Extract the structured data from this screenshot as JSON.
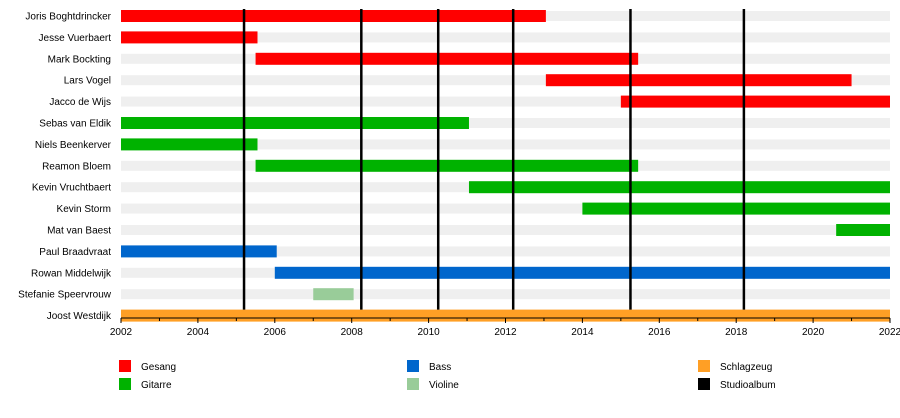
{
  "chart_data": {
    "type": "timeline",
    "x_range": [
      2002,
      2022
    ],
    "x_ticks": [
      "2002",
      "2004",
      "2006",
      "2008",
      "2010",
      "2012",
      "2014",
      "2016",
      "2018",
      "2020",
      "2022"
    ],
    "colors": {
      "Gesang": "#ff0000",
      "Gitarre": "#00b200",
      "Bass": "#0066cc",
      "Violine": "#99cc99",
      "Schlagzeug": "#ff9f25",
      "Studioalbum": "#000000"
    },
    "members": [
      {
        "name": "Joris Boghtdrincker",
        "bars": [
          {
            "role": "Gesang",
            "start": 2002.0,
            "end": 2013.05
          }
        ]
      },
      {
        "name": "Jesse Vuerbaert",
        "bars": [
          {
            "role": "Gesang",
            "start": 2002.0,
            "end": 2005.55
          }
        ]
      },
      {
        "name": "Mark Bockting",
        "bars": [
          {
            "role": "Gesang",
            "start": 2005.5,
            "end": 2015.45
          }
        ]
      },
      {
        "name": "Lars Vogel",
        "bars": [
          {
            "role": "Gesang",
            "start": 2013.05,
            "end": 2021.0
          }
        ]
      },
      {
        "name": "Jacco de Wijs",
        "bars": [
          {
            "role": "Gesang",
            "start": 2015.0,
            "end": 2022.25
          }
        ]
      },
      {
        "name": "Sebas van Eldik",
        "bars": [
          {
            "role": "Gitarre",
            "start": 2002.0,
            "end": 2011.05
          }
        ]
      },
      {
        "name": "Niels Beenkerver",
        "bars": [
          {
            "role": "Gitarre",
            "start": 2002.0,
            "end": 2005.55
          }
        ]
      },
      {
        "name": "Reamon Bloem",
        "bars": [
          {
            "role": "Gitarre",
            "start": 2005.5,
            "end": 2015.45
          }
        ]
      },
      {
        "name": "Kevin Vruchtbaert",
        "bars": [
          {
            "role": "Gitarre",
            "start": 2011.05,
            "end": 2022.25
          }
        ]
      },
      {
        "name": "Kevin Storm",
        "bars": [
          {
            "role": "Gitarre",
            "start": 2014.0,
            "end": 2022.25
          }
        ]
      },
      {
        "name": "Mat van Baest",
        "bars": [
          {
            "role": "Gitarre",
            "start": 2020.6,
            "end": 2022.25
          }
        ]
      },
      {
        "name": "Paul Braadvraat",
        "bars": [
          {
            "role": "Bass",
            "start": 2002.0,
            "end": 2006.05
          }
        ]
      },
      {
        "name": "Rowan Middelwijk",
        "bars": [
          {
            "role": "Bass",
            "start": 2006.0,
            "end": 2022.25
          }
        ]
      },
      {
        "name": "Stefanie Speervrouw",
        "bars": [
          {
            "role": "Violine",
            "start": 2007.0,
            "end": 2008.05
          }
        ]
      },
      {
        "name": "Joost Westdijk",
        "bars": [
          {
            "role": "Schlagzeug",
            "start": 2002.0,
            "end": 2022.1
          }
        ]
      }
    ],
    "studio_albums": [
      2005.2,
      2008.25,
      2010.25,
      2012.2,
      2015.25,
      2018.2
    ],
    "legend": [
      {
        "label": "Gesang",
        "role": "Gesang"
      },
      {
        "label": "Gitarre",
        "role": "Gitarre"
      },
      {
        "label": "Bass",
        "role": "Bass"
      },
      {
        "label": "Violine",
        "role": "Violine"
      },
      {
        "label": "Schlagzeug",
        "role": "Schlagzeug"
      },
      {
        "label": "Studioalbum",
        "role": "Studioalbum"
      }
    ]
  }
}
